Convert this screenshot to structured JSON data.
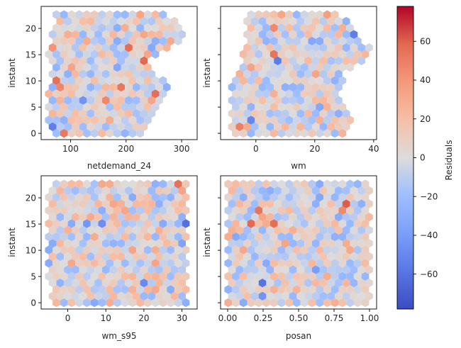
{
  "chart_data": {
    "type": "hexbin",
    "colormap": "coolwarm",
    "colorbar": {
      "label": "Residuals",
      "range": [
        -78,
        78
      ],
      "ticks": [
        -60,
        -40,
        -20,
        0,
        20,
        40,
        60
      ],
      "tick_labels": [
        "−60",
        "−40",
        "−20",
        "0",
        "20",
        "40",
        "60"
      ]
    },
    "panels": [
      {
        "id": "netdemand_24",
        "xlabel": "netdemand_24",
        "ylabel": "instant",
        "xlim": [
          47,
          328
        ],
        "ylim": [
          -1.2,
          24.2
        ],
        "xticks": [
          100,
          200,
          300
        ],
        "xtick_labels": [
          "100",
          "200",
          "300"
        ],
        "yticks": [
          0,
          5,
          10,
          15,
          20
        ],
        "ytick_labels": [
          "0",
          "5",
          "10",
          "15",
          "20"
        ],
        "x_extent_by_instant": [
          [
            0,
            62,
            228
          ],
          [
            2,
            58,
            240
          ],
          [
            4,
            57,
            248
          ],
          [
            6,
            58,
            262
          ],
          [
            8,
            60,
            275
          ],
          [
            10,
            62,
            272
          ],
          [
            12,
            64,
            245
          ],
          [
            14,
            64,
            240
          ],
          [
            16,
            58,
            265
          ],
          [
            18,
            64,
            312
          ],
          [
            20,
            70,
            306
          ],
          [
            22,
            72,
            280
          ],
          [
            23,
            76,
            272
          ]
        ]
      },
      {
        "id": "wm",
        "xlabel": "wm",
        "ylabel": "instant",
        "xlim": [
          -12,
          41
        ],
        "ylim": [
          -1.2,
          24.2
        ],
        "xticks": [
          0,
          20,
          40
        ],
        "xtick_labels": [
          "0",
          "20",
          "40"
        ],
        "yticks": [
          0,
          5,
          10,
          15,
          20
        ],
        "ytick_labels": [
          "0",
          "5",
          "10",
          "15",
          "20"
        ],
        "x_extent_by_instant": [
          [
            0,
            -8,
            31
          ],
          [
            2,
            -9,
            33
          ],
          [
            4,
            -9,
            33
          ],
          [
            6,
            -9,
            29
          ],
          [
            8,
            -9,
            29
          ],
          [
            10,
            -9,
            30
          ],
          [
            12,
            -7,
            30
          ],
          [
            14,
            -5,
            38
          ],
          [
            16,
            -4,
            39
          ],
          [
            18,
            -3,
            35
          ],
          [
            20,
            -3,
            34
          ],
          [
            22,
            -4,
            30
          ],
          [
            23,
            -4,
            27
          ]
        ]
      },
      {
        "id": "wm_s95",
        "xlabel": "wm_s95",
        "ylabel": "instant",
        "xlim": [
          -7,
          34
        ],
        "ylim": [
          -1.2,
          24.2
        ],
        "xticks": [
          0,
          10,
          20,
          30
        ],
        "xtick_labels": [
          "0",
          "10",
          "20",
          "30"
        ],
        "yticks": [
          0,
          5,
          10,
          15,
          20
        ],
        "ytick_labels": [
          "0",
          "5",
          "10",
          "15",
          "20"
        ],
        "x_extent_by_instant": [
          [
            0,
            -4,
            31
          ],
          [
            2,
            -4,
            31
          ],
          [
            4,
            -5,
            31
          ],
          [
            6,
            -5,
            31
          ],
          [
            8,
            -5,
            31
          ],
          [
            10,
            -5,
            31
          ],
          [
            12,
            -5,
            31
          ],
          [
            14,
            -5,
            31
          ],
          [
            16,
            -5,
            31
          ],
          [
            18,
            -5,
            31
          ],
          [
            20,
            -5,
            31
          ],
          [
            22,
            -4,
            31
          ],
          [
            23,
            -4,
            31
          ]
        ]
      },
      {
        "id": "posan",
        "xlabel": "posan",
        "ylabel": "instant",
        "xlim": [
          -0.05,
          1.05
        ],
        "ylim": [
          -1.2,
          24.2
        ],
        "xticks": [
          0.0,
          0.25,
          0.5,
          0.75,
          1.0
        ],
        "xtick_labels": [
          "0.00",
          "0.25",
          "0.50",
          "0.75",
          "1.00"
        ],
        "yticks": [
          0,
          5,
          10,
          15,
          20
        ],
        "ytick_labels": [
          "0",
          "5",
          "10",
          "15",
          "20"
        ],
        "x_extent_by_instant": [
          [
            0,
            0,
            1
          ],
          [
            2,
            0,
            1
          ],
          [
            4,
            0,
            1
          ],
          [
            6,
            0,
            1
          ],
          [
            8,
            0,
            1
          ],
          [
            10,
            0,
            1
          ],
          [
            12,
            0,
            1
          ],
          [
            14,
            0,
            1
          ],
          [
            16,
            0,
            1
          ],
          [
            18,
            0,
            1
          ],
          [
            20,
            0,
            1
          ],
          [
            22,
            0,
            1
          ],
          [
            23,
            0,
            1
          ]
        ]
      }
    ]
  }
}
